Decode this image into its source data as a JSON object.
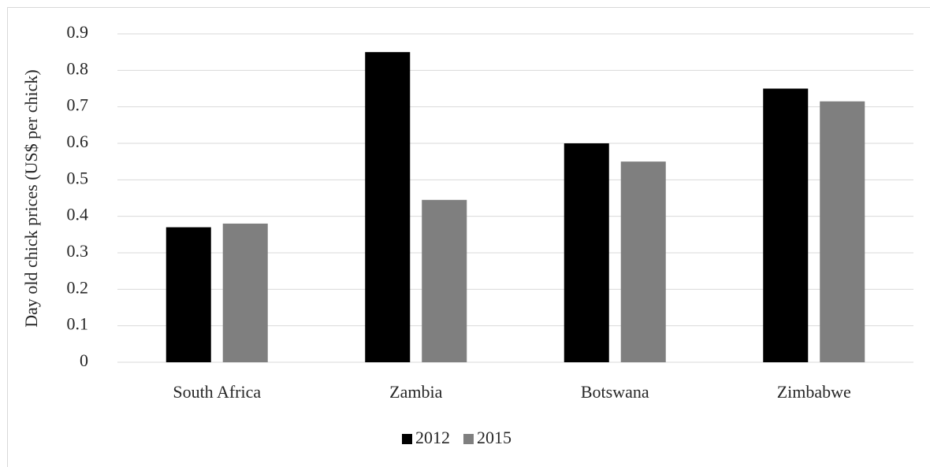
{
  "chart_data": {
    "type": "bar",
    "y_label": "Day old chick prices (US$ per chick)",
    "categories": [
      "South Africa",
      "Zambia",
      "Botswana",
      "Zimbabwe"
    ],
    "series": [
      {
        "name": "2012",
        "color": "#000000",
        "values": [
          0.37,
          0.85,
          0.6,
          0.75
        ]
      },
      {
        "name": "2015",
        "color": "#7f7f7f",
        "values": [
          0.38,
          0.445,
          0.55,
          0.715
        ]
      }
    ],
    "ylim": [
      0,
      0.9
    ],
    "yticks": [
      0,
      0.1,
      0.2,
      0.3,
      0.4,
      0.5,
      0.6,
      0.7,
      0.8,
      0.9
    ],
    "grid": true,
    "legend": "bottom"
  }
}
